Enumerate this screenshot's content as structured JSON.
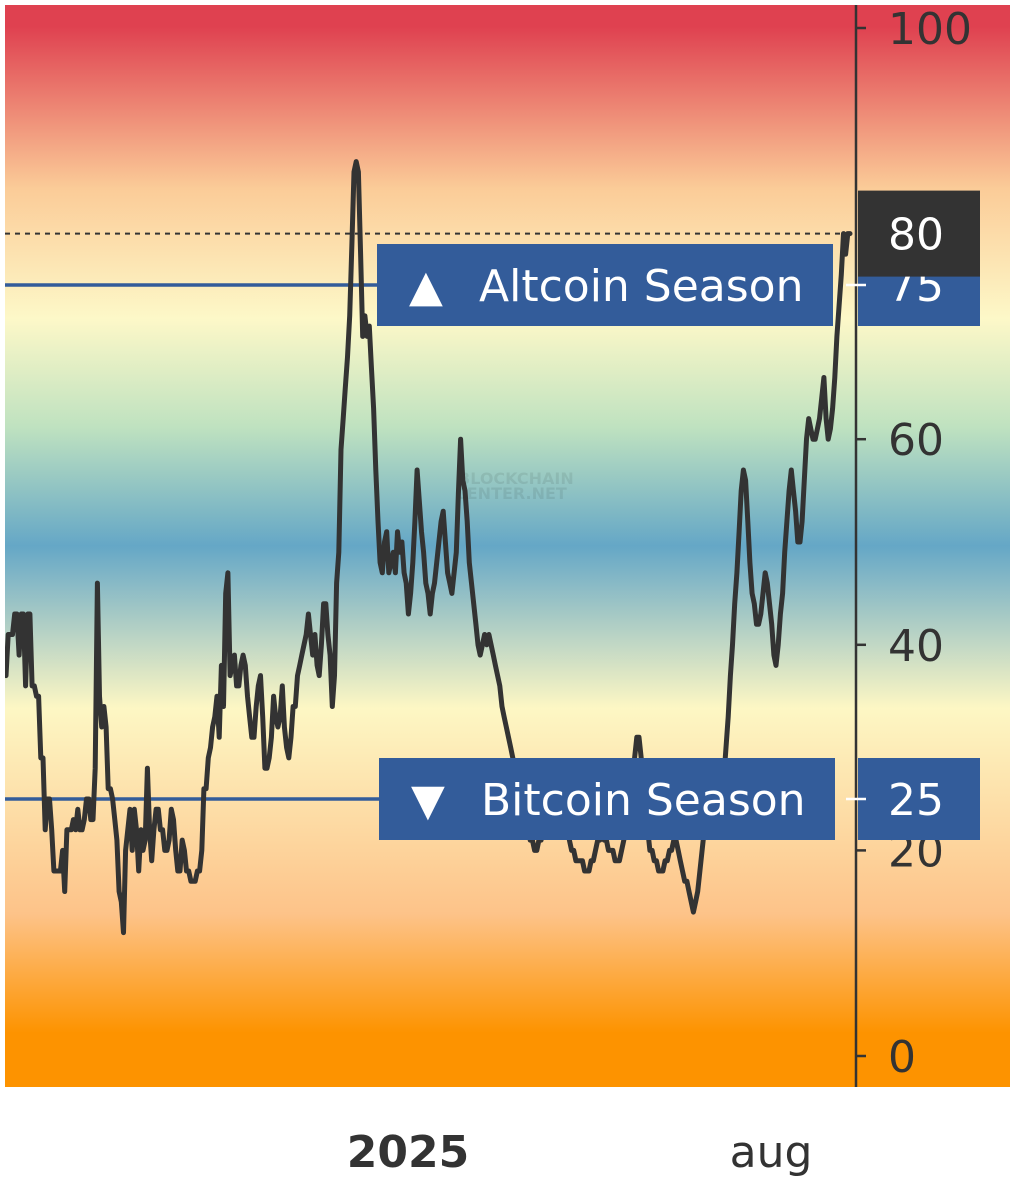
{
  "chart_data": {
    "type": "line",
    "title": "",
    "xlabel": "",
    "ylabel": "",
    "ylim": [
      0,
      100
    ],
    "y_ticks": [
      0,
      20,
      40,
      60,
      100
    ],
    "x_tick_labels": [
      {
        "label": "2025",
        "bold": true
      },
      {
        "label": "aug",
        "bold": false
      }
    ],
    "current_value": {
      "value": 80,
      "label": "80"
    },
    "thresholds": [
      {
        "value": 75,
        "label": "Altcoin Season",
        "symbol": "▲",
        "value_label": "75"
      },
      {
        "value": 25,
        "label": "Bitcoin Season",
        "symbol": "▼",
        "value_label": "25"
      }
    ],
    "watermark": [
      "BLOCKCHAIN",
      "CENTER.NET"
    ],
    "colors": {
      "line": "#333333",
      "threshold_line": "#335c9a",
      "threshold_tag": "#335c9a",
      "current_tag": "#333333",
      "gradient": [
        "#df4150",
        "#fbcc98",
        "#fdf8c8",
        "#bfe2c0",
        "#65a7c6",
        "#fdf7c4",
        "#fdc389",
        "#fd9300"
      ]
    },
    "series": [
      {
        "values": [
          37,
          41,
          41,
          41,
          43,
          43,
          39,
          43,
          43,
          36,
          43,
          43,
          36,
          36,
          35,
          35,
          29,
          29,
          22,
          25,
          25,
          22,
          18,
          18,
          18,
          18,
          20,
          16,
          22,
          22,
          22,
          23,
          22,
          24,
          22,
          22,
          23,
          25,
          25,
          23,
          23,
          28,
          46,
          35,
          32,
          34,
          32,
          26,
          26,
          25,
          23,
          21,
          16,
          15,
          12,
          20,
          22,
          24,
          20,
          24,
          22,
          18,
          22,
          20,
          21,
          28,
          22,
          19,
          22,
          24,
          24,
          22,
          22,
          20,
          20,
          21,
          24,
          23,
          20,
          18,
          18,
          21,
          20,
          18,
          18,
          17,
          17,
          17,
          18,
          18,
          20,
          26,
          26,
          29,
          30,
          32,
          33,
          35,
          31,
          38,
          34,
          45,
          47,
          37,
          38,
          39,
          36,
          36,
          38,
          39,
          38,
          35,
          33,
          31,
          31,
          34,
          36,
          37,
          33,
          28,
          28,
          29,
          31,
          35,
          33,
          32,
          33,
          36,
          32,
          30,
          29,
          31,
          34,
          34,
          37,
          38,
          39,
          40,
          41,
          43,
          41,
          39,
          41,
          38,
          37,
          40,
          44,
          44,
          41,
          39,
          34,
          37,
          46,
          49,
          59,
          62,
          65,
          68,
          72,
          79,
          86,
          87,
          86,
          78,
          70,
          72,
          70,
          71,
          67,
          63,
          57,
          52,
          48,
          47,
          50,
          51,
          47,
          48,
          49,
          47,
          51,
          49,
          50,
          47,
          46,
          43,
          45,
          48,
          52,
          57,
          54,
          51,
          49,
          46,
          45,
          43,
          45,
          46,
          48,
          50,
          52,
          53,
          50,
          47,
          46,
          45,
          47,
          49,
          55,
          60,
          56,
          55,
          52,
          48,
          46,
          44,
          42,
          40,
          39,
          40,
          41,
          40,
          41,
          40,
          39,
          38,
          37,
          36,
          34,
          33,
          32,
          31,
          30,
          29,
          28,
          27,
          26,
          25,
          24,
          23,
          22,
          21,
          21,
          20,
          20,
          21,
          21,
          22,
          24,
          26,
          28,
          28,
          27,
          25,
          24,
          23,
          22,
          22,
          22,
          21,
          20,
          20,
          19,
          19,
          19,
          19,
          18,
          18,
          18,
          19,
          19,
          20,
          21,
          21,
          22,
          21,
          21,
          20,
          20,
          20,
          19,
          19,
          19,
          20,
          21,
          22,
          23,
          25,
          27,
          29,
          31,
          31,
          29,
          26,
          24,
          22,
          20,
          20,
          19,
          19,
          18,
          18,
          18,
          19,
          19,
          20,
          20,
          21,
          21,
          20,
          19,
          18,
          17,
          17,
          16,
          15,
          14,
          15,
          16,
          18,
          20,
          22,
          23,
          25,
          26,
          27,
          28,
          27,
          26,
          25,
          27,
          30,
          33,
          37,
          40,
          44,
          47,
          51,
          55,
          57,
          56,
          52,
          48,
          45,
          44,
          42,
          42,
          43,
          45,
          47,
          46,
          44,
          42,
          39,
          38,
          40,
          43,
          45,
          49,
          52,
          55,
          57,
          55,
          53,
          50,
          50,
          52,
          56,
          60,
          62,
          61,
          60,
          60,
          61,
          62,
          64,
          66,
          62,
          60,
          61,
          63,
          66,
          70,
          73,
          76,
          80,
          78,
          80,
          80
        ]
      }
    ]
  }
}
